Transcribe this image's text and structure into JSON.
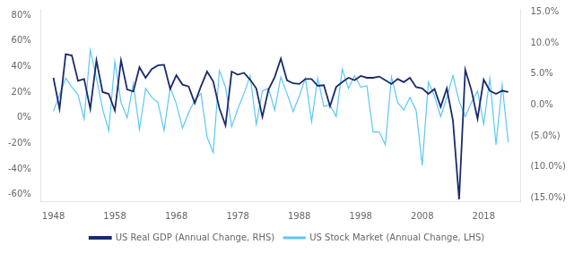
{
  "chart_data": {
    "type": "line",
    "x": [
      1948,
      1949,
      1950,
      1951,
      1952,
      1953,
      1954,
      1955,
      1956,
      1957,
      1958,
      1959,
      1960,
      1961,
      1962,
      1963,
      1964,
      1965,
      1966,
      1967,
      1968,
      1969,
      1970,
      1971,
      1972,
      1973,
      1974,
      1975,
      1976,
      1977,
      1978,
      1979,
      1980,
      1981,
      1982,
      1983,
      1984,
      1985,
      1986,
      1987,
      1988,
      1989,
      1990,
      1991,
      1992,
      1993,
      1994,
      1995,
      1996,
      1997,
      1998,
      1999,
      2000,
      2001,
      2002,
      2003,
      2004,
      2005,
      2006,
      2007,
      2008,
      2009,
      2010,
      2011,
      2012,
      2013,
      2014,
      2015,
      2016,
      2017,
      2018,
      2019,
      2020,
      2021,
      2022
    ],
    "series": [
      {
        "name": "US Stock Market (Annual Change, LHS)",
        "color": "#5BC8F5",
        "values": [
          0.05,
          0.18,
          0.31,
          0.24,
          0.18,
          -0.01,
          0.53,
          0.31,
          0.07,
          -0.1,
          0.44,
          0.12,
          0.0,
          0.27,
          -0.09,
          0.23,
          0.16,
          0.12,
          -0.1,
          0.24,
          0.11,
          -0.08,
          0.04,
          0.14,
          0.19,
          -0.15,
          -0.27,
          0.37,
          0.24,
          -0.07,
          0.07,
          0.19,
          0.33,
          -0.05,
          0.21,
          0.23,
          0.06,
          0.32,
          0.19,
          0.05,
          0.17,
          0.31,
          -0.03,
          0.31,
          0.09,
          0.1,
          0.01,
          0.38,
          0.23,
          0.33,
          0.24,
          0.25,
          -0.11,
          -0.11,
          -0.21,
          0.32,
          0.12,
          0.06,
          0.16,
          0.06,
          -0.37,
          0.28,
          0.17,
          0.01,
          0.16,
          0.33,
          0.13,
          0.01,
          0.12,
          0.21,
          -0.05,
          0.31,
          -0.21,
          0.26,
          -0.19
        ]
      },
      {
        "name": "US Real GDP (Annual Change, RHS)",
        "color": "#1B2A6B",
        "axis": "y2",
        "values": [
          0.044,
          -0.006,
          0.082,
          0.08,
          0.039,
          0.042,
          -0.006,
          0.072,
          0.021,
          0.018,
          -0.009,
          0.072,
          0.025,
          0.022,
          0.061,
          0.044,
          0.058,
          0.064,
          0.065,
          0.026,
          0.048,
          0.033,
          0.03,
          0.003,
          0.03,
          0.054,
          0.038,
          -0.005,
          -0.033,
          0.054,
          0.049,
          0.052,
          0.041,
          0.027,
          -0.019,
          0.025,
          0.045,
          0.075,
          0.04,
          0.035,
          0.034,
          0.042,
          0.042,
          0.031,
          0.032,
          -0.002,
          0.029,
          0.037,
          0.044,
          0.04,
          0.047,
          0.044,
          0.044,
          0.046,
          0.04,
          0.034,
          0.042,
          0.037,
          0.044,
          0.029,
          0.027,
          0.018,
          0.026,
          -0.003,
          0.027,
          -0.025,
          -0.152,
          0.057,
          0.024,
          -0.022,
          0.041,
          0.023,
          0.018,
          0.023,
          0.021
        ]
      }
    ],
    "xlim": [
      1946,
      2024
    ],
    "xticks": [
      1948,
      1958,
      1968,
      1978,
      1988,
      1998,
      2008,
      2018
    ],
    "ylim": [
      -0.65,
      0.85
    ],
    "yticks": [
      {
        "value": -0.6,
        "label": "-60%"
      },
      {
        "value": -0.4,
        "label": "-40%"
      },
      {
        "value": -0.2,
        "label": "-20%"
      },
      {
        "value": 0.0,
        "label": "0%"
      },
      {
        "value": 0.2,
        "label": "20%"
      },
      {
        "value": 0.4,
        "label": "40%"
      },
      {
        "value": 0.6,
        "label": "60%"
      },
      {
        "value": 0.8,
        "label": "80%"
      }
    ],
    "y2lim": [
      -0.155,
      0.155
    ],
    "y2ticks": [
      {
        "value": -0.15,
        "label": "(15.0%)"
      },
      {
        "value": -0.1,
        "label": "(10.0%)"
      },
      {
        "value": -0.05,
        "label": "(5.0%)"
      },
      {
        "value": 0.0,
        "label": "0.0%"
      },
      {
        "value": 0.05,
        "label": "5.0%"
      },
      {
        "value": 0.1,
        "label": "10.0%"
      },
      {
        "value": 0.15,
        "label": "15.0%"
      }
    ],
    "grid": false,
    "legend": "bottom"
  }
}
